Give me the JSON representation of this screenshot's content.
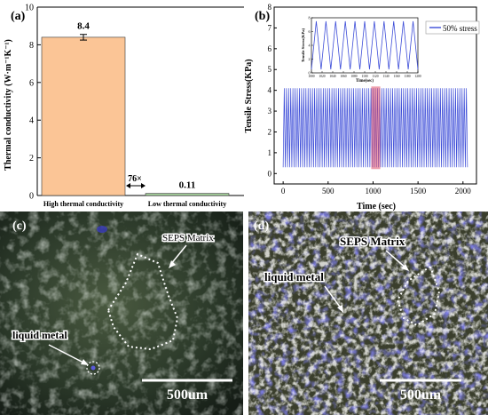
{
  "panels": {
    "a": {
      "label": "(a)"
    },
    "b": {
      "label": "(b)"
    },
    "c": {
      "label": "(c)",
      "matrix_label": "SEPS Matrix",
      "lm_label": "liquid metal",
      "scale_bar": "500um"
    },
    "d": {
      "label": "(d)",
      "matrix_label": "SEPS Matrix",
      "lm_label": "liquid metal",
      "scale_bar": "500um"
    }
  },
  "colors": {
    "bar_high": "#fbc596",
    "bar_low": "#a8d59e",
    "signal": "#3c4cd8",
    "highlight": "#e0506a"
  },
  "chart_data": [
    {
      "type": "bar",
      "categories": [
        "High thermal conductivity",
        "Low thermal conductivity"
      ],
      "values": [
        8.4,
        0.11
      ],
      "error": [
        0.15,
        0.0
      ],
      "data_labels": [
        "8.4",
        "0.11"
      ],
      "ylabel": "Thermal conductivity  (W·m⁻¹K⁻¹)",
      "ylim": [
        0,
        10
      ],
      "yticks": [
        0,
        2,
        4,
        6,
        8,
        10
      ],
      "annotation": "76×"
    },
    {
      "type": "line",
      "series": [
        {
          "name": "50% stress",
          "min": 0.3,
          "max": 4.1
        }
      ],
      "xlabel": "Time (sec)",
      "ylabel": "Tensile Stress(KPa)",
      "xlim": [
        -100,
        2150
      ],
      "ylim": [
        -0.5,
        8
      ],
      "xticks": [
        0,
        500,
        1000,
        1500,
        2000
      ],
      "yticks": [
        0,
        1,
        2,
        3,
        4,
        5,
        6,
        7,
        8
      ],
      "highlight_range": [
        980,
        1080
      ],
      "inset": {
        "xlabel": "Time(sec)",
        "ylabel": "Tensile Stress(KPa)",
        "xlim": [
          1000,
          1200
        ],
        "xticks": [
          1000,
          1020,
          1040,
          1060,
          1080,
          1100,
          1120,
          1140,
          1160,
          1180,
          1200
        ],
        "ylim": [
          0,
          8
        ],
        "yticks": [
          0,
          2,
          4,
          6,
          8
        ],
        "cycles": 11
      }
    }
  ]
}
